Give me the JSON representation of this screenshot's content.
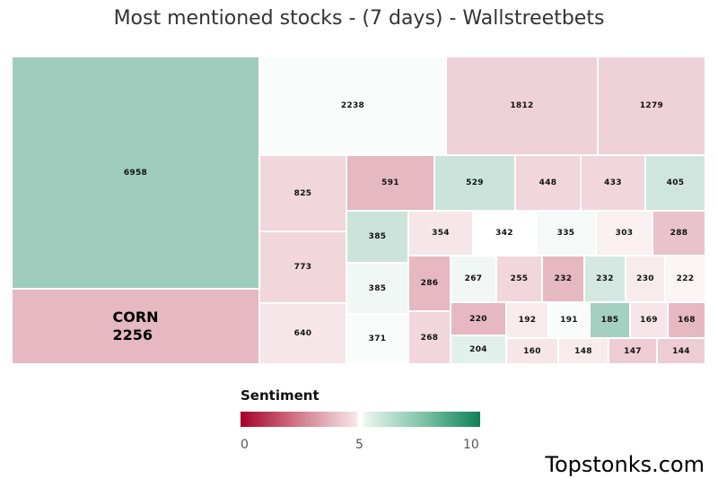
{
  "chart_data": {
    "type": "treemap",
    "title": "Most mentioned stocks - (7 days) - Wallstreetbets",
    "legend": {
      "title": "Sentiment",
      "ticks": [
        "0",
        "5",
        "10"
      ],
      "min": 0,
      "max": 10
    },
    "colors": {
      "negative": "#a50026",
      "neutral": "#ffffff",
      "positive": "#11805a"
    },
    "items": [
      {
        "label": "6958",
        "value": 6958,
        "sentiment": 7.0
      },
      {
        "label": "CORN",
        "value": 2256,
        "sentiment": 3.6
      },
      {
        "label": "2238",
        "value": 2238,
        "sentiment": 5.1
      },
      {
        "label": "1812",
        "value": 1812,
        "sentiment": 4.1
      },
      {
        "label": "1279",
        "value": 1279,
        "sentiment": 4.1
      },
      {
        "label": "825",
        "value": 825,
        "sentiment": 4.2
      },
      {
        "label": "773",
        "value": 773,
        "sentiment": 4.2
      },
      {
        "label": "640",
        "value": 640,
        "sentiment": 4.5
      },
      {
        "label": "591",
        "value": 591,
        "sentiment": 3.6
      },
      {
        "label": "529",
        "value": 529,
        "sentiment": 6.1
      },
      {
        "label": "448",
        "value": 448,
        "sentiment": 4.2
      },
      {
        "label": "433",
        "value": 433,
        "sentiment": 4.2
      },
      {
        "label": "405",
        "value": 405,
        "sentiment": 6.0
      },
      {
        "label": "385",
        "value": 385,
        "sentiment": 6.1
      },
      {
        "label": "385",
        "value": 385,
        "sentiment": 5.3
      },
      {
        "label": "371",
        "value": 371,
        "sentiment": 5.1
      },
      {
        "label": "354",
        "value": 354,
        "sentiment": 4.5
      },
      {
        "label": "342",
        "value": 342,
        "sentiment": 5.0
      },
      {
        "label": "335",
        "value": 335,
        "sentiment": 5.2
      },
      {
        "label": "303",
        "value": 303,
        "sentiment": 4.7
      },
      {
        "label": "288",
        "value": 288,
        "sentiment": 3.8
      },
      {
        "label": "286",
        "value": 286,
        "sentiment": 3.6
      },
      {
        "label": "268",
        "value": 268,
        "sentiment": 4.2
      },
      {
        "label": "267",
        "value": 267,
        "sentiment": 5.3
      },
      {
        "label": "255",
        "value": 255,
        "sentiment": 4.2
      },
      {
        "label": "232",
        "value": 232,
        "sentiment": 3.6
      },
      {
        "label": "232",
        "value": 232,
        "sentiment": 5.9
      },
      {
        "label": "230",
        "value": 230,
        "sentiment": 4.6
      },
      {
        "label": "222",
        "value": 222,
        "sentiment": 4.8
      },
      {
        "label": "220",
        "value": 220,
        "sentiment": 3.6
      },
      {
        "label": "204",
        "value": 204,
        "sentiment": 5.6
      },
      {
        "label": "192",
        "value": 192,
        "sentiment": 4.6
      },
      {
        "label": "191",
        "value": 191,
        "sentiment": 5.1
      },
      {
        "label": "185",
        "value": 185,
        "sentiment": 6.9
      },
      {
        "label": "169",
        "value": 169,
        "sentiment": 4.5
      },
      {
        "label": "168",
        "value": 168,
        "sentiment": 3.6
      },
      {
        "label": "160",
        "value": 160,
        "sentiment": 4.5
      },
      {
        "label": "148",
        "value": 148,
        "sentiment": 4.6
      },
      {
        "label": "147",
        "value": 147,
        "sentiment": 4.0
      },
      {
        "label": "144",
        "value": 144,
        "sentiment": 4.0
      }
    ],
    "highlight": {
      "ticker": "CORN",
      "value": "2256"
    }
  },
  "brand": "Topstonks.com"
}
